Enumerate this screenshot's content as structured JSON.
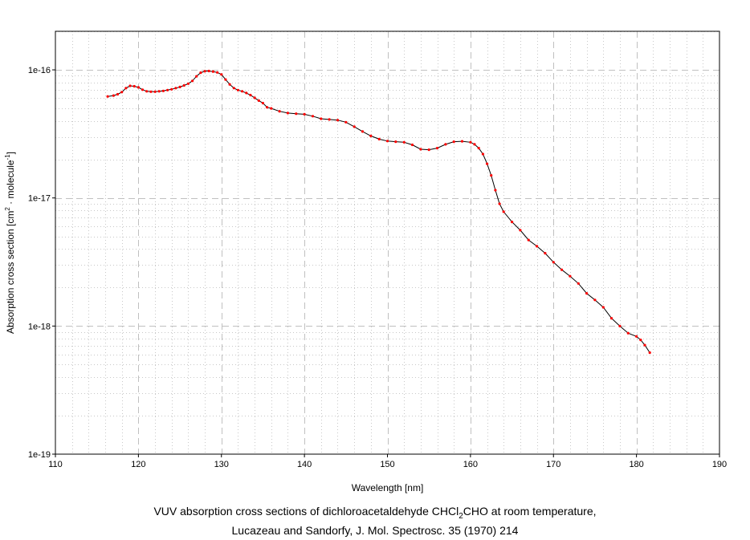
{
  "caption": {
    "line1_prefix": "VUV absorption cross sections of dichloroacetaldehyde CHCl",
    "line1_sub": "2",
    "line1_suffix": "CHO at room temperature,",
    "line2": "Lucazeau and Sandorfy, J. Mol. Spectrosc. 35 (1970) 214"
  },
  "chart_data": {
    "type": "line",
    "xlabel": "Wavelength [nm]",
    "ylabel_prefix": "Absorption cross section [cm",
    "ylabel_sup1": "2",
    "ylabel_mid": " · molecule",
    "ylabel_sup2": "-1",
    "ylabel_suffix": "]",
    "xlim": [
      110,
      190
    ],
    "ylim": [
      1e-19,
      2e-16
    ],
    "yscale": "log",
    "x_ticks": [
      110,
      120,
      130,
      140,
      150,
      160,
      170,
      180,
      190
    ],
    "x_tick_labels": [
      "110",
      "120",
      "130",
      "140",
      "150",
      "160",
      "170",
      "180",
      "190"
    ],
    "y_ticks": [
      1e-19,
      1e-18,
      1e-17,
      1e-16
    ],
    "y_tick_labels": [
      "1e-19",
      "1e-18",
      "1e-17",
      "1e-16"
    ],
    "grid": true,
    "colors": {
      "line": "#000000",
      "marker": "#ff0000",
      "major_grid": "#c0c0c0",
      "minor_grid": "#c8c8c8"
    },
    "series": [
      {
        "x": [
          116.3,
          117.0,
          117.5,
          118.0,
          118.5,
          119.0,
          119.5,
          120.0,
          120.5,
          121.0,
          121.5,
          122.0,
          122.5,
          123.0,
          123.5,
          124.0,
          124.5,
          125.0,
          125.5,
          126.0,
          126.5,
          127.0,
          127.5,
          128.0,
          128.5,
          129.0,
          129.5,
          130.0,
          130.5,
          131.0,
          131.5,
          132.0,
          132.5,
          133.0,
          133.5,
          134.0,
          134.5,
          135.0,
          135.5,
          136.0,
          137.0,
          138.0,
          139.0,
          140.0,
          141.0,
          142.0,
          143.0,
          144.0,
          145.0,
          146.0,
          147.0,
          148.0,
          149.0,
          150.0,
          151.0,
          152.0,
          153.0,
          154.0,
          155.0,
          156.0,
          157.0,
          158.0,
          159.0,
          160.0,
          160.5,
          161.0,
          161.5,
          162.0,
          162.5,
          163.0,
          163.5,
          164.0,
          165.0,
          166.0,
          167.0,
          168.0,
          169.0,
          170.0,
          171.0,
          172.0,
          173.0,
          174.0,
          175.0,
          176.0,
          177.0,
          178.0,
          179.0,
          180.0,
          180.5,
          181.0,
          181.6
        ],
        "y": [
          6.2e-17,
          6.3e-17,
          6.45e-17,
          6.7e-17,
          7.2e-17,
          7.5e-17,
          7.45e-17,
          7.3e-17,
          7e-17,
          6.8e-17,
          6.75e-17,
          6.75e-17,
          6.8e-17,
          6.85e-17,
          6.95e-17,
          7.05e-17,
          7.2e-17,
          7.35e-17,
          7.55e-17,
          7.8e-17,
          8.2e-17,
          8.9e-17,
          9.5e-17,
          9.75e-17,
          9.8e-17,
          9.7e-17,
          9.55e-17,
          9.2e-17,
          8.4e-17,
          7.7e-17,
          7.2e-17,
          6.95e-17,
          6.8e-17,
          6.6e-17,
          6.35e-17,
          6.05e-17,
          5.75e-17,
          5.5e-17,
          5.1e-17,
          5e-17,
          4.75e-17,
          4.6e-17,
          4.55e-17,
          4.5e-17,
          4.35e-17,
          4.15e-17,
          4.1e-17,
          4.05e-17,
          3.9e-17,
          3.6e-17,
          3.3e-17,
          3.05e-17,
          2.88e-17,
          2.78e-17,
          2.75e-17,
          2.72e-17,
          2.6e-17,
          2.4e-17,
          2.38e-17,
          2.45e-17,
          2.62e-17,
          2.75e-17,
          2.77e-17,
          2.72e-17,
          2.62e-17,
          2.45e-17,
          2.2e-17,
          1.85e-17,
          1.5e-17,
          1.15e-17,
          9e-18,
          7.8e-18,
          6.5e-18,
          5.6e-18,
          4.7e-18,
          4.2e-18,
          3.7e-18,
          3.15e-18,
          2.75e-18,
          2.45e-18,
          2.15e-18,
          1.8e-18,
          1.6e-18,
          1.4e-18,
          1.15e-18,
          1e-18,
          8.8e-19,
          8.3e-19,
          7.8e-19,
          7.1e-19,
          6.2e-19
        ]
      }
    ]
  }
}
